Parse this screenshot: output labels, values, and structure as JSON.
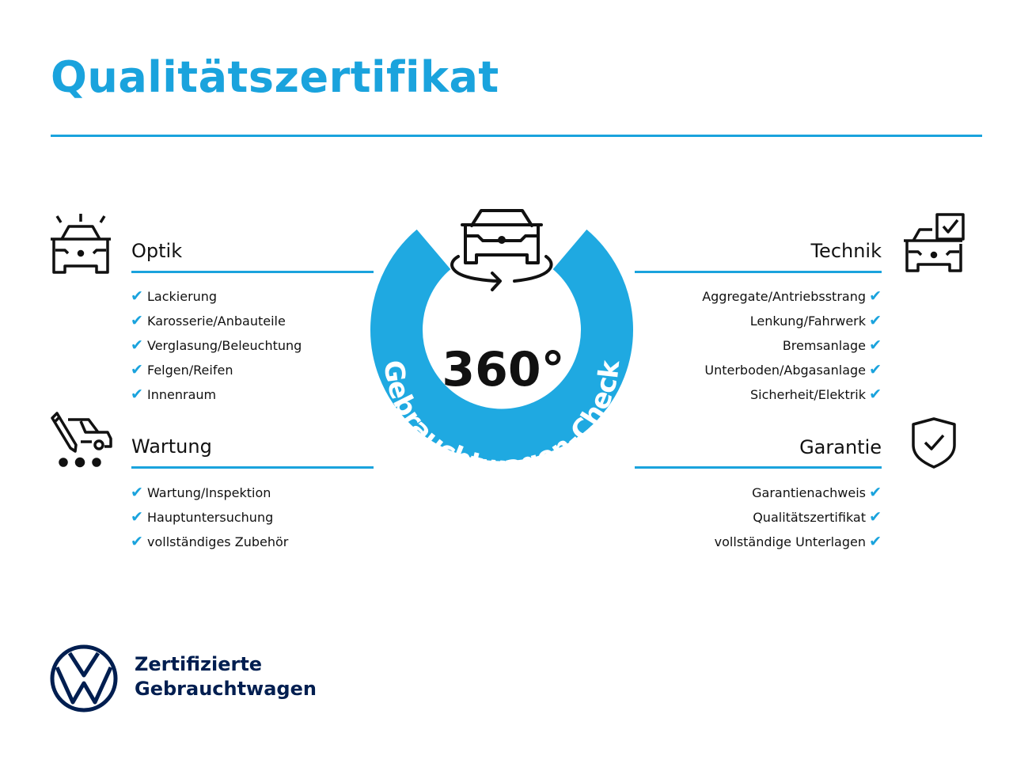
{
  "colors": {
    "accent": "#1aa3dd",
    "ring": "#1fa9e1",
    "navy": "#001e50",
    "text": "#111111"
  },
  "title": "Qualitätszertifikat",
  "badge": {
    "value": "360°",
    "ring_text": "Gebrauchtwagen-Check",
    "icon": "car-rotate-icon"
  },
  "sections": {
    "optik": {
      "heading": "Optik",
      "icon": "car-lights-icon",
      "items": [
        "Lackierung",
        "Karosserie/Anbauteile",
        "Verglasung/Beleuchtung",
        "Felgen/Reifen",
        "Innenraum"
      ]
    },
    "wartung": {
      "heading": "Wartung",
      "icon": "car-service-icon",
      "items": [
        "Wartung/Inspektion",
        "Hauptuntersuchung",
        "vollständiges Zubehör"
      ]
    },
    "technik": {
      "heading": "Technik",
      "icon": "car-check-icon",
      "items": [
        "Aggregate/Antriebsstrang",
        "Lenkung/Fahrwerk",
        "Bremsanlage",
        "Unterboden/Abgasanlage",
        "Sicherheit/Elektrik"
      ]
    },
    "garantie": {
      "heading": "Garantie",
      "icon": "shield-check-icon",
      "items": [
        "Garantienachweis",
        "Qualitätszertifikat",
        "vollständige Unterlagen"
      ]
    }
  },
  "check_glyph": "✔",
  "footer": {
    "line1": "Zertifizierte",
    "line2": "Gebrauchtwagen",
    "logo": "vw-logo"
  }
}
